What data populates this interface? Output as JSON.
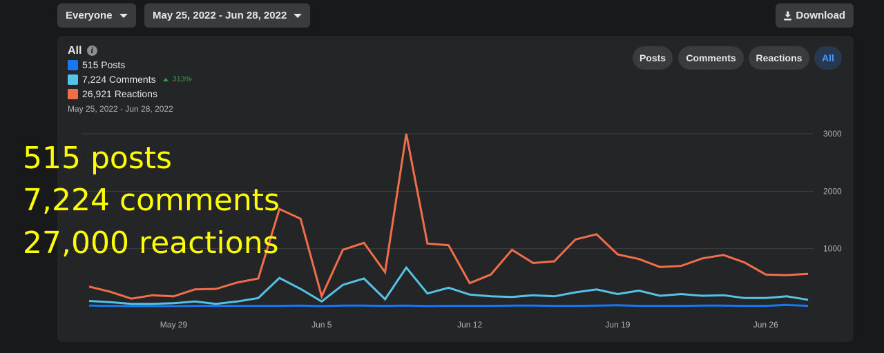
{
  "toolbar": {
    "audience": "Everyone",
    "date_range": "May 25, 2022 - Jun 28, 2022",
    "download_label": "Download",
    "download_icon": "download-icon"
  },
  "card": {
    "title": "All",
    "info_icon": "i",
    "legend": [
      {
        "label": "515 Posts",
        "color": "#1877f2"
      },
      {
        "label": "7,224 Comments",
        "color": "#55c3e8",
        "delta": "313%",
        "delta_color": "#31a24c"
      },
      {
        "label": "26,921 Reactions",
        "color": "#f26e4a"
      }
    ],
    "date_range": "May 25, 2022 - Jun 28, 2022",
    "filters": [
      {
        "label": "Posts",
        "active": false
      },
      {
        "label": "Comments",
        "active": false
      },
      {
        "label": "Reactions",
        "active": false
      },
      {
        "label": "All",
        "active": true
      }
    ]
  },
  "overlay": {
    "lines": [
      "515 posts",
      "7,224 comments",
      "27,000 reactions"
    ],
    "color": "#ffff00"
  },
  "chart_data": {
    "type": "line",
    "x_ticks": [
      "May 29",
      "Jun 5",
      "Jun 12",
      "Jun 19",
      "Jun 26"
    ],
    "x_tick_index": [
      4,
      11,
      18,
      25,
      32
    ],
    "y_ticks": [
      1000,
      2000,
      3000
    ],
    "ylim": [
      0,
      3000
    ],
    "grid": true,
    "series": [
      {
        "name": "Reactions",
        "color": "#f26e4a",
        "values": [
          340,
          250,
          130,
          190,
          170,
          290,
          300,
          410,
          480,
          1690,
          1520,
          170,
          980,
          1100,
          590,
          3000,
          1090,
          1060,
          400,
          550,
          980,
          750,
          780,
          1160,
          1250,
          900,
          820,
          680,
          700,
          830,
          890,
          760,
          550,
          540,
          560
        ]
      },
      {
        "name": "Comments",
        "color": "#55c3e8",
        "values": [
          90,
          70,
          40,
          40,
          50,
          80,
          40,
          80,
          140,
          490,
          300,
          80,
          370,
          480,
          120,
          670,
          220,
          320,
          200,
          170,
          160,
          190,
          170,
          240,
          290,
          210,
          270,
          180,
          210,
          180,
          190,
          140,
          140,
          170,
          110
        ]
      },
      {
        "name": "Posts",
        "color": "#1877f2",
        "values": [
          10,
          5,
          0,
          0,
          0,
          5,
          5,
          5,
          5,
          5,
          10,
          0,
          10,
          10,
          5,
          10,
          0,
          5,
          5,
          5,
          10,
          10,
          5,
          5,
          10,
          15,
          5,
          5,
          5,
          10,
          10,
          5,
          5,
          20,
          5
        ]
      }
    ]
  }
}
